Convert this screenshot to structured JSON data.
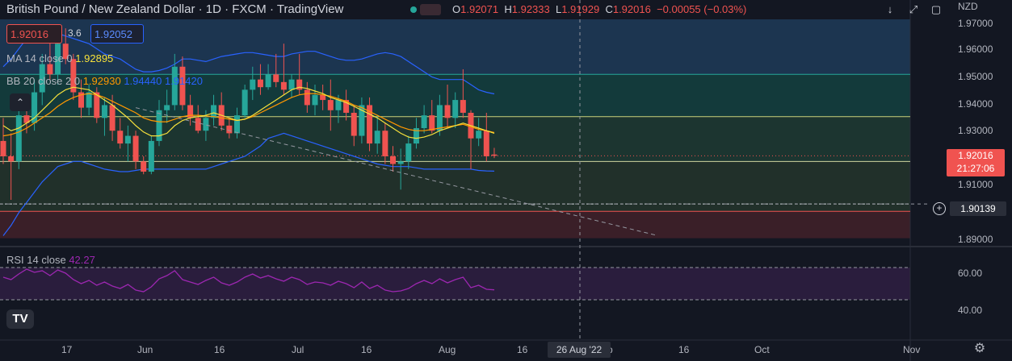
{
  "header": {
    "title": "British Pound / New Zealand Dollar · 1D · FXCM · TradingView",
    "ohlc": {
      "o_label": "O",
      "o": "1.92071",
      "h_label": "H",
      "h": "1.92333",
      "l_label": "L",
      "l": "1.91929",
      "c_label": "C",
      "c": "1.92016",
      "change": "−0.00055 (−0.03%)"
    }
  },
  "trade": {
    "sell_price": "1.92016",
    "spread": "3.6",
    "buy_price": "1.92052"
  },
  "indicators": {
    "ma": {
      "label": "MA 14 close 0",
      "value": "1.92895"
    },
    "bb": {
      "label": "BB 20 close 2 0",
      "basis": "1.92930",
      "upper": "1.94440",
      "lower": "1.91420"
    },
    "rsi": {
      "label": "RSI 14 close",
      "value": "42.27"
    }
  },
  "price_axis": {
    "currency": "NZD",
    "labels": [
      "1.97000",
      "1.96000",
      "1.95000",
      "1.94000",
      "1.93000",
      "1.92000",
      "1.91000",
      "1.90000",
      "1.89000"
    ],
    "current_price": "1.92016",
    "countdown": "21:27:06",
    "crosshair_price": "1.90139"
  },
  "rsi_axis": {
    "labels": [
      "60.00",
      "40.00"
    ]
  },
  "time_axis": {
    "labels": [
      "17",
      "Jun",
      "16",
      "Jul",
      "16",
      "Aug",
      "16",
      "p",
      "16",
      "Oct",
      "Nov"
    ],
    "crosshair_date": "26 Aug '22"
  },
  "buttons": {
    "collapse": "⌃",
    "logo": "TV",
    "down_arrow": "↓",
    "expand": "⤢",
    "screen": "▢",
    "settings": "⚙",
    "add": "+"
  },
  "colors": {
    "background": "#131722",
    "up": "#26a69a",
    "down": "#ef5350",
    "bb_band": "#2962ff",
    "ma": "#f7e13b",
    "bb_basis": "#ff9800",
    "rsi": "#9c27b0"
  },
  "chart_data": {
    "type": "candlestick",
    "symbol": "GBPNZD",
    "interval": "1D",
    "ylim": [
      1.886,
      1.9735
    ],
    "candles": [
      [
        1.926,
        1.935,
        1.917,
        1.92
      ],
      [
        1.92,
        1.929,
        1.903,
        1.918
      ],
      [
        1.918,
        1.942,
        1.915,
        1.936
      ],
      [
        1.936,
        1.94,
        1.929,
        1.933
      ],
      [
        1.933,
        1.95,
        1.93,
        1.945
      ],
      [
        1.945,
        1.96,
        1.94,
        1.956
      ],
      [
        1.956,
        1.965,
        1.95,
        1.952
      ],
      [
        1.952,
        1.97,
        1.948,
        1.964
      ],
      [
        1.964,
        1.97,
        1.956,
        1.958
      ],
      [
        1.958,
        1.96,
        1.942,
        1.945
      ],
      [
        1.945,
        1.95,
        1.935,
        1.939
      ],
      [
        1.939,
        1.948,
        1.936,
        1.945
      ],
      [
        1.945,
        1.947,
        1.933,
        1.935
      ],
      [
        1.935,
        1.943,
        1.928,
        1.94
      ],
      [
        1.94,
        1.944,
        1.926,
        1.93
      ],
      [
        1.93,
        1.935,
        1.923,
        1.925
      ],
      [
        1.925,
        1.932,
        1.918,
        1.928
      ],
      [
        1.928,
        1.93,
        1.915,
        1.918
      ],
      [
        1.918,
        1.92,
        1.913,
        1.914
      ],
      [
        1.914,
        1.928,
        1.913,
        1.926
      ],
      [
        1.926,
        1.942,
        1.924,
        1.938
      ],
      [
        1.938,
        1.946,
        1.933,
        1.94
      ],
      [
        1.94,
        1.96,
        1.938,
        1.955
      ],
      [
        1.955,
        1.959,
        1.938,
        1.94
      ],
      [
        1.94,
        1.944,
        1.932,
        1.935
      ],
      [
        1.935,
        1.94,
        1.929,
        1.93
      ],
      [
        1.93,
        1.938,
        1.926,
        1.935
      ],
      [
        1.935,
        1.944,
        1.932,
        1.94
      ],
      [
        1.94,
        1.945,
        1.93,
        1.932
      ],
      [
        1.932,
        1.935,
        1.927,
        1.929
      ],
      [
        1.929,
        1.939,
        1.927,
        1.936
      ],
      [
        1.936,
        1.948,
        1.935,
        1.946
      ],
      [
        1.946,
        1.955,
        1.942,
        1.95
      ],
      [
        1.95,
        1.956,
        1.944,
        1.947
      ],
      [
        1.947,
        1.956,
        1.946,
        1.952
      ],
      [
        1.952,
        1.96,
        1.947,
        1.949
      ],
      [
        1.949,
        1.964,
        1.944,
        1.946
      ],
      [
        1.946,
        1.952,
        1.943,
        1.95
      ],
      [
        1.95,
        1.96,
        1.944,
        1.946
      ],
      [
        1.946,
        1.949,
        1.937,
        1.94
      ],
      [
        1.94,
        1.948,
        1.936,
        1.944
      ],
      [
        1.944,
        1.948,
        1.938,
        1.942
      ],
      [
        1.942,
        1.95,
        1.93,
        1.938
      ],
      [
        1.938,
        1.944,
        1.933,
        1.942
      ],
      [
        1.942,
        1.946,
        1.934,
        1.937
      ],
      [
        1.937,
        1.94,
        1.924,
        1.928
      ],
      [
        1.928,
        1.943,
        1.925,
        1.94
      ],
      [
        1.94,
        1.943,
        1.922,
        1.925
      ],
      [
        1.925,
        1.936,
        1.921,
        1.93
      ],
      [
        1.93,
        1.933,
        1.917,
        1.92
      ],
      [
        1.92,
        1.924,
        1.914,
        1.917
      ],
      [
        1.917,
        1.923,
        1.907,
        1.918
      ],
      [
        1.918,
        1.928,
        1.915,
        1.925
      ],
      [
        1.925,
        1.935,
        1.923,
        1.931
      ],
      [
        1.931,
        1.94,
        1.929,
        1.936
      ],
      [
        1.936,
        1.942,
        1.929,
        1.93
      ],
      [
        1.93,
        1.944,
        1.928,
        1.94
      ],
      [
        1.94,
        1.948,
        1.931,
        1.935
      ],
      [
        1.935,
        1.945,
        1.931,
        1.942
      ],
      [
        1.942,
        1.954,
        1.935,
        1.937
      ],
      [
        1.937,
        1.938,
        1.915,
        1.927
      ],
      [
        1.927,
        1.935,
        1.924,
        1.93
      ],
      [
        1.93,
        1.937,
        1.918,
        1.92
      ],
      [
        1.9207,
        1.9233,
        1.9193,
        1.9202
      ]
    ],
    "ma14": [
      1.932,
      1.93,
      1.931,
      1.933,
      1.935,
      1.938,
      1.941,
      1.944,
      1.946,
      1.947,
      1.9465,
      1.946,
      1.944,
      1.942,
      1.94,
      1.9375,
      1.935,
      1.932,
      1.9295,
      1.928,
      1.928,
      1.929,
      1.932,
      1.934,
      1.935,
      1.9355,
      1.936,
      1.937,
      1.936,
      1.935,
      1.934,
      1.9345,
      1.936,
      1.938,
      1.94,
      1.942,
      1.944,
      1.946,
      1.947,
      1.9465,
      1.9455,
      1.9445,
      1.943,
      1.942,
      1.941,
      1.9395,
      1.938,
      1.9365,
      1.935,
      1.933,
      1.931,
      1.929,
      1.9275,
      1.927,
      1.9275,
      1.9285,
      1.93,
      1.931,
      1.932,
      1.933,
      1.932,
      1.931,
      1.93,
      1.929
    ],
    "bb_basis": [
      1.928,
      1.9285,
      1.9295,
      1.931,
      1.933,
      1.935,
      1.937,
      1.9395,
      1.9415,
      1.943,
      1.944,
      1.9445,
      1.944,
      1.943,
      1.9415,
      1.94,
      1.9385,
      1.937,
      1.935,
      1.934,
      1.9335,
      1.9335,
      1.9345,
      1.9355,
      1.936,
      1.936,
      1.9358,
      1.9355,
      1.935,
      1.9345,
      1.934,
      1.9345,
      1.9355,
      1.937,
      1.9385,
      1.94,
      1.9415,
      1.943,
      1.944,
      1.9445,
      1.9445,
      1.944,
      1.9435,
      1.9425,
      1.9415,
      1.94,
      1.939,
      1.9375,
      1.936,
      1.9345,
      1.933,
      1.9315,
      1.9305,
      1.93,
      1.93,
      1.9305,
      1.931,
      1.9315,
      1.932,
      1.9325,
      1.9315,
      1.9305,
      1.93,
      1.9293
    ],
    "bb_upper": [
      1.955,
      1.958,
      1.962,
      1.966,
      1.968,
      1.969,
      1.969,
      1.968,
      1.967,
      1.966,
      1.965,
      1.964,
      1.962,
      1.96,
      1.959,
      1.958,
      1.956,
      1.954,
      1.953,
      1.953,
      1.9535,
      1.9545,
      1.956,
      1.958,
      1.958,
      1.9575,
      1.957,
      1.958,
      1.959,
      1.9595,
      1.96,
      1.9605,
      1.9605,
      1.96,
      1.9595,
      1.959,
      1.959,
      1.96,
      1.9605,
      1.961,
      1.961,
      1.96,
      1.959,
      1.958,
      1.9575,
      1.9575,
      1.958,
      1.959,
      1.96,
      1.9605,
      1.96,
      1.959,
      1.957,
      1.955,
      1.953,
      1.951,
      1.95,
      1.95,
      1.95,
      1.95,
      1.948,
      1.946,
      1.945,
      1.9444
    ],
    "bb_lower": [
      1.889,
      1.893,
      1.898,
      1.902,
      1.906,
      1.91,
      1.913,
      1.916,
      1.917,
      1.918,
      1.918,
      1.917,
      1.916,
      1.915,
      1.9145,
      1.914,
      1.914,
      1.9145,
      1.915,
      1.915,
      1.915,
      1.915,
      1.915,
      1.915,
      1.915,
      1.915,
      1.915,
      1.916,
      1.917,
      1.918,
      1.919,
      1.92,
      1.922,
      1.924,
      1.927,
      1.928,
      1.929,
      1.928,
      1.927,
      1.926,
      1.925,
      1.924,
      1.923,
      1.922,
      1.921,
      1.92,
      1.919,
      1.918,
      1.917,
      1.9165,
      1.916,
      1.916,
      1.916,
      1.9155,
      1.915,
      1.915,
      1.915,
      1.915,
      1.915,
      1.915,
      1.915,
      1.9145,
      1.9143,
      1.9142
    ],
    "rsi": [
      58,
      55,
      62,
      68,
      64,
      66,
      60,
      67,
      63,
      55,
      50,
      54,
      48,
      52,
      47,
      44,
      49,
      42,
      40,
      46,
      56,
      60,
      66,
      55,
      52,
      49,
      54,
      58,
      51,
      48,
      52,
      58,
      62,
      57,
      60,
      56,
      53,
      58,
      55,
      49,
      52,
      51,
      48,
      53,
      50,
      45,
      52,
      44,
      48,
      42,
      40,
      41,
      44,
      50,
      54,
      50,
      56,
      51,
      55,
      58,
      45,
      48,
      43,
      42.27
    ],
    "trendline": {
      "from_candle": 17,
      "from_price": 1.939,
      "to_candle": 84,
      "to_price": 1.889
    },
    "levels": [
      1.952,
      1.9355,
      1.918,
      1.9014,
      1.8985
    ],
    "rsi_levels": [
      70,
      30
    ],
    "zones": [
      {
        "from": 1.952,
        "to": 1.9735,
        "color": "#1c3550"
      },
      {
        "from": 1.9355,
        "to": 1.952,
        "color": "#133a3b"
      },
      {
        "from": 1.918,
        "to": 1.9355,
        "color": "#1c3530"
      },
      {
        "from": 1.8985,
        "to": 1.918,
        "color": "#21302a"
      },
      {
        "from": 1.888,
        "to": 1.8985,
        "color": "#3a1f28"
      }
    ],
    "rsi_zone": {
      "from": 30,
      "to": 70,
      "color": "#2a1d3d"
    }
  }
}
